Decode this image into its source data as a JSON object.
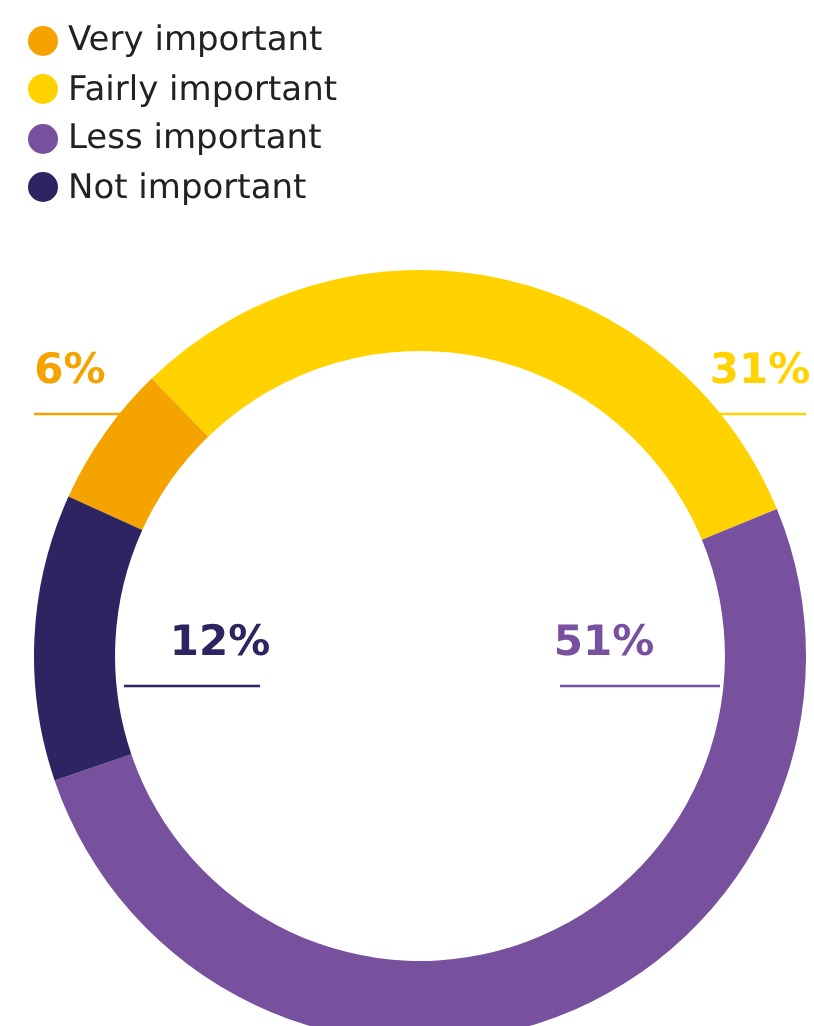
{
  "chart_data": {
    "type": "donut",
    "categories": [
      "Very important",
      "Fairly important",
      "Less important",
      "Not important"
    ],
    "values": [
      6,
      31,
      51,
      12
    ],
    "colors": [
      "#f5a300",
      "#ffd200",
      "#77509e",
      "#2e2462"
    ],
    "value_labels": [
      "6%",
      "31%",
      "51%",
      "12%"
    ],
    "legend": "top left"
  }
}
